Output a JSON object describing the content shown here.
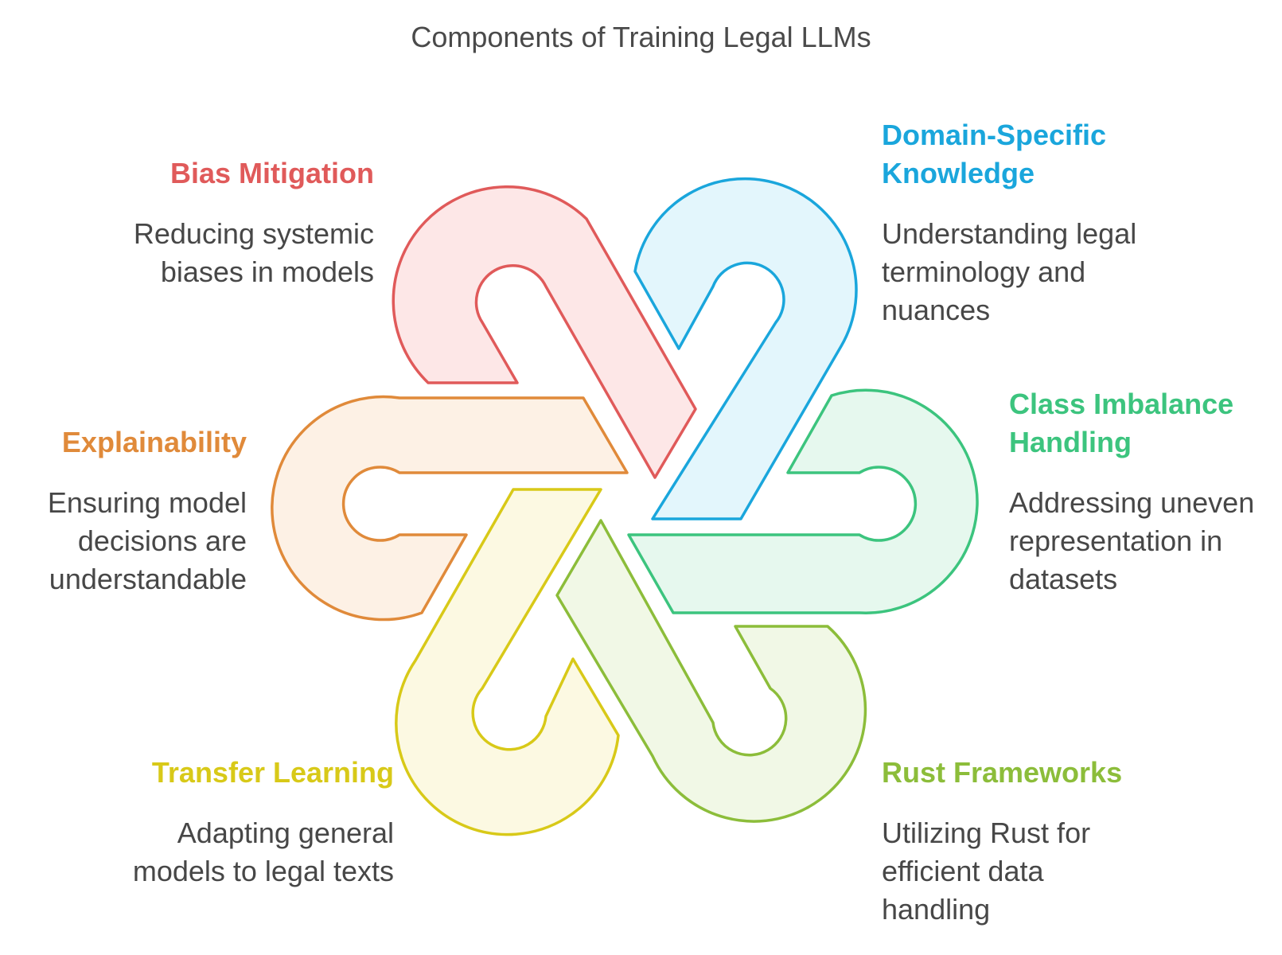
{
  "title": "Components of Training Legal LLMs",
  "components": [
    {
      "heading": "Bias Mitigation",
      "description": "Reducing systemic biases in models",
      "color": "#e05a5a",
      "fill": "#fde7e7"
    },
    {
      "heading": "Domain-Specific Knowledge",
      "description": "Understanding legal terminology and nuances",
      "color": "#1aa6dc",
      "fill": "#e3f6fc"
    },
    {
      "heading": "Class Imbalance Handling",
      "description": "Addressing uneven representation in datasets",
      "color": "#3cc47e",
      "fill": "#e6f8ee"
    },
    {
      "heading": "Rust Frameworks",
      "description": "Utilizing Rust for efficient data handling",
      "color": "#8cbd3a",
      "fill": "#f1f8e6"
    },
    {
      "heading": "Transfer Learning",
      "description": "Adapting general models to legal texts",
      "color": "#d8c918",
      "fill": "#fcf9e2"
    },
    {
      "heading": "Explainability",
      "description": "Ensuring model decisions are understandable",
      "color": "#e08a3a",
      "fill": "#fdf1e5"
    }
  ]
}
